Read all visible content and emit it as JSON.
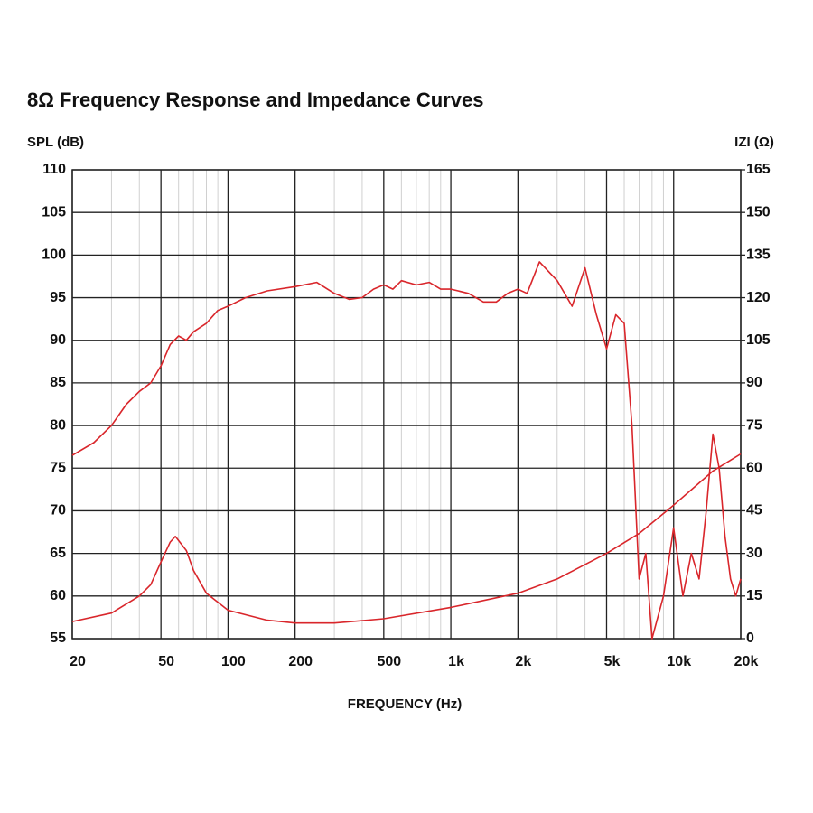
{
  "chart_data": {
    "type": "line",
    "title": "8Ω Frequency Response and Impedance Curves",
    "ylabel": "SPL (dB)",
    "y2label": "IZI (Ω)",
    "xlabel": "FREQUENCY (Hz)",
    "log_x": true,
    "xlim": [
      20,
      20000
    ],
    "xticks": [
      20,
      50,
      100,
      200,
      500,
      {
        "value": 1000,
        "label": "1k"
      },
      {
        "value": 2000,
        "label": "2k"
      },
      {
        "value": 5000,
        "label": "5k"
      },
      {
        "value": 10000,
        "label": "10k"
      },
      {
        "value": 20000,
        "label": "20k"
      }
    ],
    "x_minor_grid": [
      30,
      40,
      60,
      70,
      80,
      90,
      300,
      400,
      600,
      700,
      800,
      900,
      3000,
      4000,
      6000,
      7000,
      8000,
      9000
    ],
    "ylim": [
      55,
      110
    ],
    "yticks": [
      55,
      60,
      65,
      70,
      75,
      80,
      85,
      90,
      95,
      100,
      105,
      110
    ],
    "y2lim": [
      0,
      165
    ],
    "y2ticks": [
      0,
      15,
      30,
      45,
      60,
      75,
      90,
      105,
      120,
      135,
      150,
      165
    ],
    "grid": true,
    "series": [
      {
        "color": "#d9262b",
        "axis": "y",
        "x": [
          20,
          25,
          30,
          35,
          40,
          45,
          50,
          55,
          60,
          65,
          70,
          80,
          90,
          100,
          120,
          150,
          200,
          250,
          300,
          350,
          400,
          450,
          500,
          550,
          600,
          700,
          800,
          900,
          1000,
          1200,
          1400,
          1600,
          1800,
          2000,
          2200,
          2500,
          3000,
          3500,
          4000,
          4500,
          5000,
          5500,
          6000,
          6500,
          7000,
          7500,
          8000,
          9000,
          10000,
          11000,
          12000,
          13000,
          14000,
          15000,
          16000,
          17000,
          18000,
          19000,
          20000
        ],
        "values": [
          76.5,
          78,
          80,
          82.5,
          84,
          85,
          87,
          89.5,
          90.5,
          90,
          91,
          92,
          93.5,
          94,
          95,
          95.8,
          96.3,
          96.8,
          95.5,
          94.8,
          95,
          96,
          96.5,
          96,
          97,
          96.5,
          96.8,
          96,
          96,
          95.5,
          94.5,
          94.5,
          95.5,
          96,
          95.5,
          99.2,
          97,
          94,
          98.5,
          93,
          89,
          93,
          92,
          80,
          62,
          65,
          55,
          60,
          68,
          60,
          65,
          62,
          70,
          79,
          75,
          67,
          62,
          60,
          62
        ]
      },
      {
        "color": "#d9262b",
        "axis": "y2",
        "x": [
          20,
          30,
          40,
          45,
          50,
          55,
          58,
          65,
          70,
          80,
          100,
          150,
          200,
          300,
          500,
          1000,
          2000,
          3000,
          5000,
          7000,
          10000,
          15000,
          20000
        ],
        "values": [
          6,
          9,
          15,
          19,
          27,
          34,
          36,
          31,
          24,
          16,
          10,
          6.5,
          5.5,
          5.5,
          7,
          11,
          16,
          21,
          30,
          37,
          47,
          59,
          65
        ]
      }
    ]
  }
}
